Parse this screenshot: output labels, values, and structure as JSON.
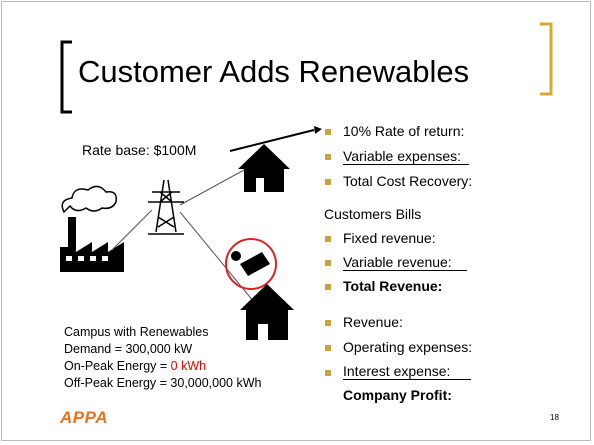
{
  "title": "Customer Adds Renewables",
  "rate_base": "Rate base: $100M",
  "cost_list": [
    "10% Rate of return:",
    "Variable expenses:",
    "Total Cost Recovery:"
  ],
  "bills_heading": "Customers Bills",
  "bills_list": [
    "Fixed revenue:",
    "Variable revenue:",
    "Total Revenue:"
  ],
  "profit_list": [
    "Revenue:",
    "Operating expenses:",
    "Interest expense:"
  ],
  "profit_total": "Company Profit:",
  "campus": {
    "title": "Campus with Renewables",
    "demand": "Demand = 300,000 kW",
    "on_peak_label": "On-Peak Energy =",
    "on_peak_value": "0 kWh",
    "off_peak": "Off-Peak Energy = 30,000,000 kWh"
  },
  "page_number": "18",
  "logo": "APPA"
}
